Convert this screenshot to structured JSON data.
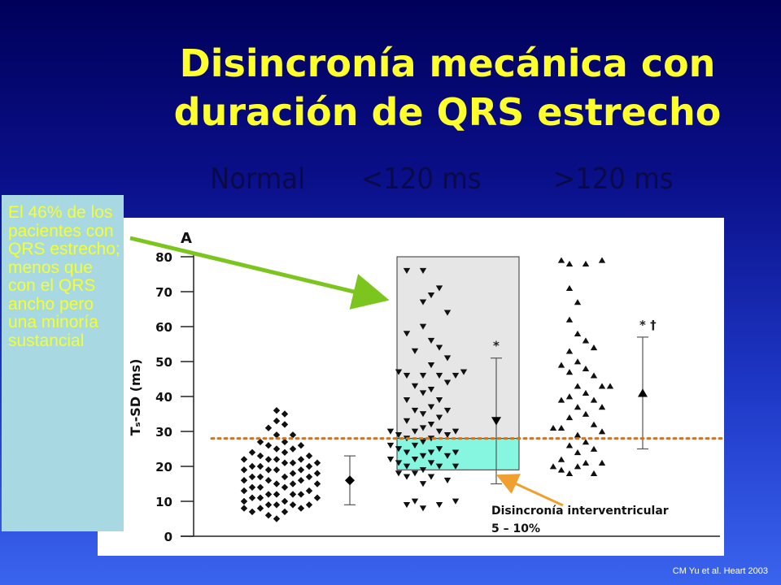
{
  "slide": {
    "title_line1": "Disincronía mecánica con",
    "title_line2": "duración de QRS estrecho",
    "note": "El 46% de los pacientes con QRS estrecho; menos que con el QRS ancho pero una minoría sustancial",
    "citation": "CM Yu et al. Heart 2003",
    "colors": {
      "title": "#ffff2e",
      "note_bg": "#a8d8e2",
      "arrow": "#7cc41e",
      "threshold": "#c87828"
    }
  },
  "chart_data": {
    "type": "scatter",
    "panel_label": "A",
    "ylabel": "Tₛ-SD (ms)",
    "ylim": [
      0,
      80
    ],
    "yticks": [
      0,
      10,
      20,
      30,
      40,
      50,
      60,
      70,
      80
    ],
    "categories": [
      "Normal",
      "<120 ms",
      ">120 ms"
    ],
    "threshold": 28,
    "annotation": "Disincronía interventricular: 5 – 10%",
    "series": [
      {
        "marker": "diamond",
        "points": [
          [
            -4,
            22
          ],
          [
            -4,
            19
          ],
          [
            -4,
            16
          ],
          [
            -4,
            13
          ],
          [
            -4,
            10
          ],
          [
            -4,
            8
          ],
          [
            -3,
            24
          ],
          [
            -3,
            20
          ],
          [
            -3,
            17
          ],
          [
            -3,
            14
          ],
          [
            -3,
            11
          ],
          [
            -3,
            7
          ],
          [
            -2,
            27
          ],
          [
            -2,
            23
          ],
          [
            -2,
            20
          ],
          [
            -2,
            17
          ],
          [
            -2,
            14
          ],
          [
            -2,
            11
          ],
          [
            -2,
            8
          ],
          [
            -1,
            31
          ],
          [
            -1,
            26
          ],
          [
            -1,
            22
          ],
          [
            -1,
            19
          ],
          [
            -1,
            16
          ],
          [
            -1,
            12
          ],
          [
            -1,
            9
          ],
          [
            -1,
            6
          ],
          [
            0,
            36
          ],
          [
            0,
            33
          ],
          [
            0,
            29
          ],
          [
            0,
            25
          ],
          [
            0,
            22
          ],
          [
            0,
            19
          ],
          [
            0,
            15
          ],
          [
            0,
            12
          ],
          [
            0,
            9
          ],
          [
            0,
            5
          ],
          [
            1,
            35
          ],
          [
            1,
            32
          ],
          [
            1,
            27
          ],
          [
            1,
            24
          ],
          [
            1,
            21
          ],
          [
            1,
            17
          ],
          [
            1,
            14
          ],
          [
            1,
            10
          ],
          [
            1,
            7
          ],
          [
            2,
            29
          ],
          [
            2,
            25
          ],
          [
            2,
            21
          ],
          [
            2,
            18
          ],
          [
            2,
            15
          ],
          [
            2,
            12
          ],
          [
            2,
            9
          ],
          [
            3,
            26
          ],
          [
            3,
            22
          ],
          [
            3,
            19
          ],
          [
            3,
            16
          ],
          [
            3,
            12
          ],
          [
            3,
            8
          ],
          [
            4,
            23
          ],
          [
            4,
            20
          ],
          [
            4,
            17
          ],
          [
            4,
            13
          ],
          [
            4,
            9
          ],
          [
            5,
            21
          ],
          [
            5,
            18
          ],
          [
            5,
            15
          ],
          [
            5,
            11
          ]
        ],
        "mean": 16,
        "error": [
          9,
          23
        ]
      },
      {
        "marker": "triangle-down",
        "points": [
          [
            -4,
            30
          ],
          [
            -4,
            26
          ],
          [
            -4,
            22
          ],
          [
            -3,
            47
          ],
          [
            -3,
            29
          ],
          [
            -3,
            25
          ],
          [
            -3,
            21
          ],
          [
            -3,
            18
          ],
          [
            -2,
            76
          ],
          [
            -2,
            58
          ],
          [
            -2,
            46
          ],
          [
            -2,
            39
          ],
          [
            -2,
            33
          ],
          [
            -2,
            28
          ],
          [
            -2,
            24
          ],
          [
            -2,
            20
          ],
          [
            -2,
            17
          ],
          [
            -2,
            9
          ],
          [
            -1,
            53
          ],
          [
            -1,
            43
          ],
          [
            -1,
            36
          ],
          [
            -1,
            30
          ],
          [
            -1,
            26
          ],
          [
            -1,
            22
          ],
          [
            -1,
            18
          ],
          [
            -1,
            10
          ],
          [
            0,
            76
          ],
          [
            0,
            67
          ],
          [
            0,
            60
          ],
          [
            0,
            46
          ],
          [
            0,
            41
          ],
          [
            0,
            35
          ],
          [
            0,
            31
          ],
          [
            0,
            27
          ],
          [
            0,
            23
          ],
          [
            0,
            19
          ],
          [
            0,
            15
          ],
          [
            0,
            8
          ],
          [
            1,
            69
          ],
          [
            1,
            56
          ],
          [
            1,
            49
          ],
          [
            1,
            42
          ],
          [
            1,
            37
          ],
          [
            1,
            32
          ],
          [
            1,
            28
          ],
          [
            1,
            24
          ],
          [
            1,
            21
          ],
          [
            1,
            17
          ],
          [
            2,
            71
          ],
          [
            2,
            54
          ],
          [
            2,
            46
          ],
          [
            2,
            39
          ],
          [
            2,
            34
          ],
          [
            2,
            30
          ],
          [
            2,
            25
          ],
          [
            2,
            20
          ],
          [
            2,
            9
          ],
          [
            3,
            64
          ],
          [
            3,
            51
          ],
          [
            3,
            44
          ],
          [
            3,
            36
          ],
          [
            3,
            29
          ],
          [
            3,
            23
          ],
          [
            3,
            16
          ],
          [
            4,
            46
          ],
          [
            4,
            30
          ],
          [
            4,
            24
          ],
          [
            4,
            20
          ],
          [
            4,
            10
          ],
          [
            5,
            47
          ]
        ],
        "mean": 33,
        "error": [
          15,
          51
        ],
        "annotation": "*"
      },
      {
        "marker": "triangle-up",
        "points": [
          [
            -2,
            31
          ],
          [
            -2,
            20
          ],
          [
            -1,
            79
          ],
          [
            -1,
            49
          ],
          [
            -1,
            39
          ],
          [
            -1,
            31
          ],
          [
            -1,
            22
          ],
          [
            -1,
            19
          ],
          [
            0,
            78
          ],
          [
            0,
            71
          ],
          [
            0,
            62
          ],
          [
            0,
            53
          ],
          [
            0,
            47
          ],
          [
            0,
            40
          ],
          [
            0,
            34
          ],
          [
            0,
            26
          ],
          [
            0,
            18
          ],
          [
            1,
            67
          ],
          [
            1,
            58
          ],
          [
            1,
            50
          ],
          [
            1,
            43
          ],
          [
            1,
            37
          ],
          [
            1,
            29
          ],
          [
            1,
            24
          ],
          [
            1,
            20
          ],
          [
            2,
            78
          ],
          [
            2,
            56
          ],
          [
            2,
            48
          ],
          [
            2,
            41
          ],
          [
            2,
            35
          ],
          [
            2,
            27
          ],
          [
            2,
            21
          ],
          [
            3,
            54
          ],
          [
            3,
            46
          ],
          [
            3,
            39
          ],
          [
            3,
            32
          ],
          [
            3,
            25
          ],
          [
            3,
            18
          ],
          [
            4,
            79
          ],
          [
            4,
            43
          ],
          [
            4,
            37
          ],
          [
            4,
            30
          ],
          [
            4,
            21
          ],
          [
            5,
            43
          ]
        ],
        "mean": 41,
        "error": [
          25,
          57
        ],
        "annotation": "* †"
      }
    ]
  }
}
